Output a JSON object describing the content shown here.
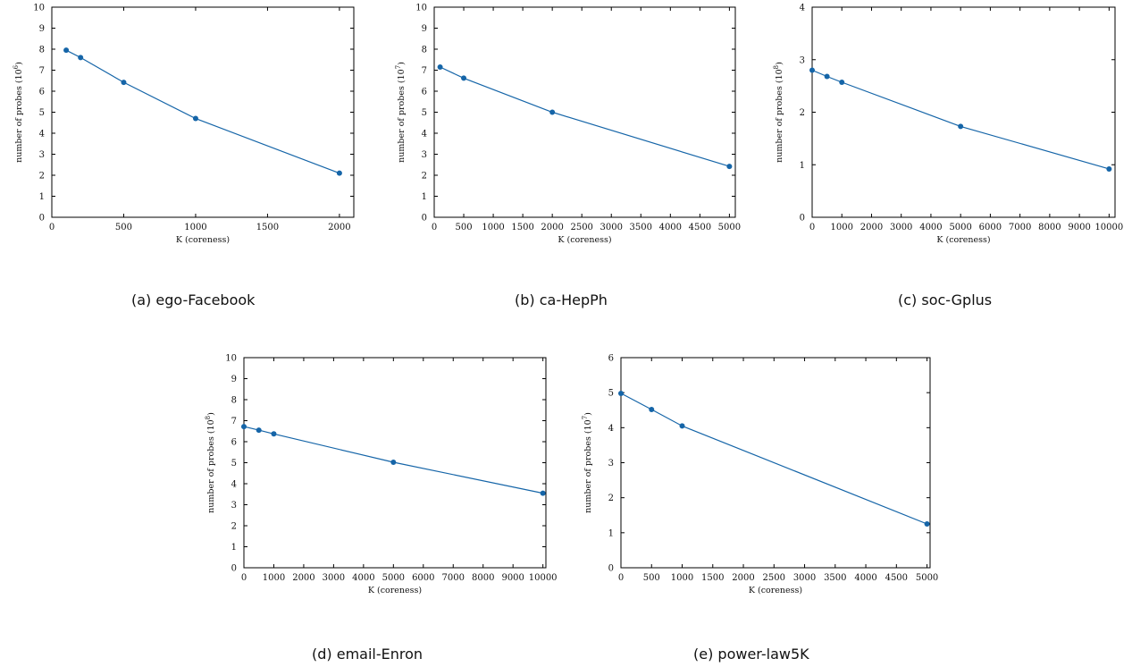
{
  "chart_data": [
    {
      "type": "line",
      "caption": "(a) ego-Facebook",
      "xlabel": "K (coreness)",
      "ylabel_text": "number of probes (10",
      "ylabel_exp": "6",
      "ylabel_close": ")",
      "xlim": [
        0,
        2100
      ],
      "ylim": [
        0,
        10
      ],
      "xticks": [
        0,
        500,
        1000,
        1500,
        2000
      ],
      "yticks": [
        0,
        1,
        2,
        3,
        4,
        5,
        6,
        7,
        8,
        9,
        10
      ],
      "x": [
        100,
        200,
        500,
        1000,
        2000
      ],
      "y": [
        7.95,
        7.6,
        6.42,
        4.7,
        2.1
      ],
      "color": "#1565a8"
    },
    {
      "type": "line",
      "caption": "(b) ca-HepPh",
      "xlabel": "K (coreness)",
      "ylabel_text": "number of probes (10",
      "ylabel_exp": "7",
      "ylabel_close": ")",
      "xlim": [
        0,
        5100
      ],
      "ylim": [
        0,
        10
      ],
      "xticks": [
        0,
        500,
        1000,
        1500,
        2000,
        2500,
        3000,
        3500,
        4000,
        4500,
        5000
      ],
      "yticks": [
        0,
        1,
        2,
        3,
        4,
        5,
        6,
        7,
        8,
        9,
        10
      ],
      "x": [
        100,
        500,
        2000,
        5000
      ],
      "y": [
        7.15,
        6.62,
        5.0,
        2.42
      ],
      "color": "#1565a8"
    },
    {
      "type": "line",
      "caption": "(c) soc-Gplus",
      "xlabel": "K (coreness)",
      "ylabel_text": "number of probes (10",
      "ylabel_exp": "8",
      "ylabel_close": ")",
      "xlim": [
        0,
        10200
      ],
      "ylim": [
        0,
        4
      ],
      "xticks": [
        0,
        1000,
        2000,
        3000,
        4000,
        5000,
        6000,
        7000,
        8000,
        9000,
        10000
      ],
      "yticks": [
        0,
        1,
        2,
        3,
        4
      ],
      "x": [
        0,
        500,
        1000,
        5000,
        10000
      ],
      "y": [
        2.8,
        2.68,
        2.57,
        1.73,
        0.92
      ],
      "color": "#1565a8"
    },
    {
      "type": "line",
      "caption": "(d) email-Enron",
      "xlabel": "K (coreness)",
      "ylabel_text": "number of probes (10",
      "ylabel_exp": "8",
      "ylabel_close": ")",
      "xlim": [
        0,
        10100
      ],
      "ylim": [
        0,
        10
      ],
      "xticks": [
        0,
        1000,
        2000,
        3000,
        4000,
        5000,
        6000,
        7000,
        8000,
        9000,
        10000
      ],
      "yticks": [
        0,
        1,
        2,
        3,
        4,
        5,
        6,
        7,
        8,
        9,
        10
      ],
      "x": [
        0,
        500,
        1000,
        5000,
        10000
      ],
      "y": [
        6.72,
        6.55,
        6.37,
        5.02,
        3.55
      ],
      "color": "#1565a8"
    },
    {
      "type": "line",
      "caption": "(e) power-law5K",
      "xlabel": "K (coreness)",
      "ylabel_text": "number of probes (10",
      "ylabel_exp": "7",
      "ylabel_close": ")",
      "xlim": [
        0,
        5050
      ],
      "ylim": [
        0,
        6
      ],
      "xticks": [
        0,
        500,
        1000,
        1500,
        2000,
        2500,
        3000,
        3500,
        4000,
        4500,
        5000
      ],
      "yticks": [
        0,
        1,
        2,
        3,
        4,
        5,
        6
      ],
      "x": [
        0,
        500,
        1000,
        5000
      ],
      "y": [
        4.98,
        4.52,
        4.05,
        1.25
      ],
      "color": "#1565a8"
    }
  ]
}
